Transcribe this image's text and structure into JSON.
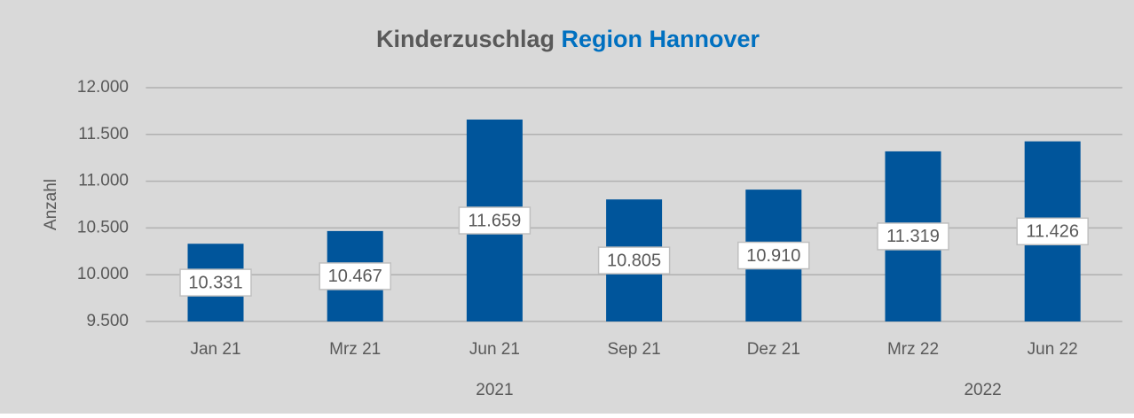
{
  "chart_data": {
    "type": "bar",
    "title_parts": [
      {
        "text": "Kinderzuschlag",
        "color": "#595959"
      },
      {
        "text": "Region Hannover",
        "color": "#0070c0"
      }
    ],
    "y_label": "Anzahl",
    "categories": [
      "Jan 21",
      "Mrz 21",
      "Jun 21",
      "Sep 21",
      "Dez 21",
      "Mrz 22",
      "Jun 22"
    ],
    "values": [
      10331,
      10467,
      11659,
      10805,
      10910,
      11319,
      11426
    ],
    "value_labels": [
      "10.331",
      "10.467",
      "11.659",
      "10.805",
      "10.910",
      "11.319",
      "11.426"
    ],
    "groups": [
      {
        "label": "2021",
        "start": 0,
        "end": 4
      },
      {
        "label": "2022",
        "start": 5,
        "end": 6
      }
    ],
    "color": "#00559b",
    "ylim": [
      9500,
      12000
    ],
    "yticks": [
      {
        "value": 9500,
        "label": "9.500"
      },
      {
        "value": 10000,
        "label": "10.000"
      },
      {
        "value": 10500,
        "label": "10.500"
      },
      {
        "value": 11000,
        "label": "11.000"
      },
      {
        "value": 11500,
        "label": "11.500"
      },
      {
        "value": 12000,
        "label": "12.000"
      }
    ],
    "grid": true
  }
}
